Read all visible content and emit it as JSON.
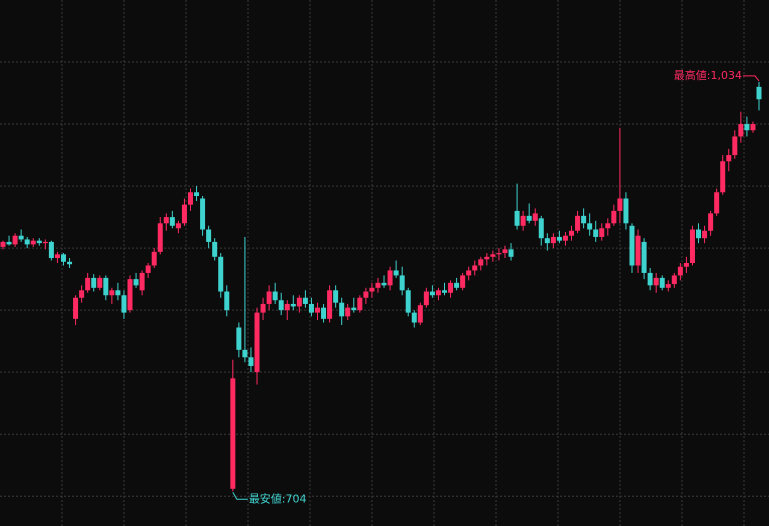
{
  "chart_data": {
    "type": "candlestick",
    "up_color": "#ff2a62",
    "down_color": "#3fd3cf",
    "grid": true,
    "ylim": [
      676,
      1100
    ],
    "yticks": [
      700,
      750,
      800,
      850,
      900,
      950,
      1000,
      1050
    ],
    "high_annotation": "最高値:1,034",
    "low_annotation": "最安値:704",
    "open": [
      901,
      905,
      903,
      910,
      907,
      903,
      906,
      904,
      905,
      892,
      895,
      889,
      843,
      860,
      866,
      876,
      868,
      876,
      862,
      866,
      862,
      850,
      875,
      866,
      880,
      886,
      897,
      920,
      925,
      916,
      920,
      935,
      945,
      940,
      915,
      905,
      893,
      865,
      706,
      836,
      818,
      812,
      800,
      848,
      855,
      865,
      858,
      850,
      855,
      853,
      860,
      855,
      848,
      852,
      843,
      866,
      856,
      845,
      852,
      850,
      860,
      865,
      868,
      872,
      870,
      882,
      878,
      866,
      848,
      840,
      854,
      865,
      862,
      866,
      864,
      872,
      868,
      878,
      882,
      886,
      891,
      893,
      895,
      896,
      899,
      930,
      918,
      926,
      922,
      924,
      908,
      904,
      909,
      906,
      910,
      914,
      926,
      920,
      915,
      909,
      916,
      920,
      930,
      940,
      918,
      886,
      905,
      880,
      870,
      876,
      868,
      871,
      878,
      885,
      888,
      915,
      908,
      914,
      928,
      945,
      970,
      975,
      990,
      1000,
      995,
      1030
    ],
    "high": [
      906,
      910,
      912,
      915,
      909,
      908,
      908,
      907,
      906,
      897,
      896,
      892,
      862,
      870,
      880,
      879,
      878,
      878,
      868,
      872,
      866,
      878,
      880,
      882,
      888,
      900,
      925,
      928,
      930,
      922,
      940,
      948,
      950,
      942,
      918,
      908,
      896,
      870,
      810,
      840,
      909,
      820,
      852,
      860,
      870,
      872,
      864,
      858,
      862,
      862,
      866,
      860,
      856,
      855,
      870,
      870,
      860,
      855,
      860,
      862,
      868,
      872,
      876,
      878,
      885,
      890,
      885,
      868,
      850,
      856,
      868,
      870,
      868,
      872,
      874,
      876,
      880,
      885,
      890,
      893,
      896,
      898,
      900,
      902,
      904,
      952,
      930,
      936,
      932,
      926,
      912,
      912,
      914,
      913,
      918,
      930,
      932,
      928,
      922,
      920,
      924,
      935,
      997,
      945,
      920,
      915,
      908,
      884,
      880,
      878,
      874,
      880,
      888,
      893,
      918,
      920,
      918,
      930,
      948,
      975,
      980,
      995,
      1010,
      1006,
      1002,
      1034
    ],
    "low": [
      899,
      902,
      901,
      905,
      900,
      901,
      902,
      899,
      890,
      888,
      886,
      884,
      838,
      856,
      864,
      865,
      866,
      858,
      855,
      858,
      843,
      848,
      868,
      862,
      876,
      884,
      895,
      914,
      916,
      912,
      918,
      930,
      938,
      910,
      900,
      890,
      860,
      845,
      704,
      812,
      808,
      800,
      790,
      842,
      850,
      855,
      846,
      842,
      850,
      848,
      852,
      845,
      842,
      840,
      840,
      852,
      838,
      842,
      848,
      848,
      855,
      860,
      864,
      868,
      866,
      876,
      862,
      845,
      836,
      838,
      852,
      860,
      858,
      862,
      860,
      866,
      866,
      874,
      878,
      882,
      886,
      889,
      890,
      892,
      890,
      915,
      914,
      920,
      918,
      902,
      898,
      900,
      904,
      902,
      906,
      912,
      916,
      910,
      905,
      906,
      910,
      918,
      920,
      915,
      880,
      880,
      875,
      866,
      864,
      866,
      865,
      868,
      874,
      880,
      886,
      904,
      904,
      910,
      926,
      943,
      962,
      972,
      985,
      990,
      993,
      1011
    ],
    "close": [
      905,
      903,
      910,
      907,
      903,
      906,
      904,
      905,
      892,
      895,
      889,
      887,
      860,
      866,
      876,
      868,
      876,
      862,
      866,
      862,
      848,
      875,
      870,
      880,
      886,
      897,
      920,
      925,
      918,
      920,
      935,
      945,
      942,
      915,
      905,
      893,
      865,
      850,
      795,
      818,
      812,
      805,
      848,
      855,
      865,
      858,
      850,
      855,
      853,
      860,
      855,
      848,
      852,
      843,
      866,
      856,
      845,
      852,
      850,
      860,
      865,
      868,
      872,
      870,
      882,
      878,
      866,
      848,
      840,
      854,
      865,
      862,
      866,
      864,
      872,
      868,
      878,
      882,
      886,
      891,
      893,
      895,
      896,
      899,
      893,
      918,
      926,
      922,
      928,
      908,
      904,
      909,
      906,
      910,
      914,
      926,
      920,
      915,
      909,
      916,
      920,
      930,
      940,
      920,
      886,
      910,
      880,
      870,
      876,
      868,
      871,
      878,
      885,
      888,
      915,
      908,
      914,
      928,
      945,
      970,
      975,
      990,
      1000,
      995,
      1000,
      1020
    ]
  }
}
